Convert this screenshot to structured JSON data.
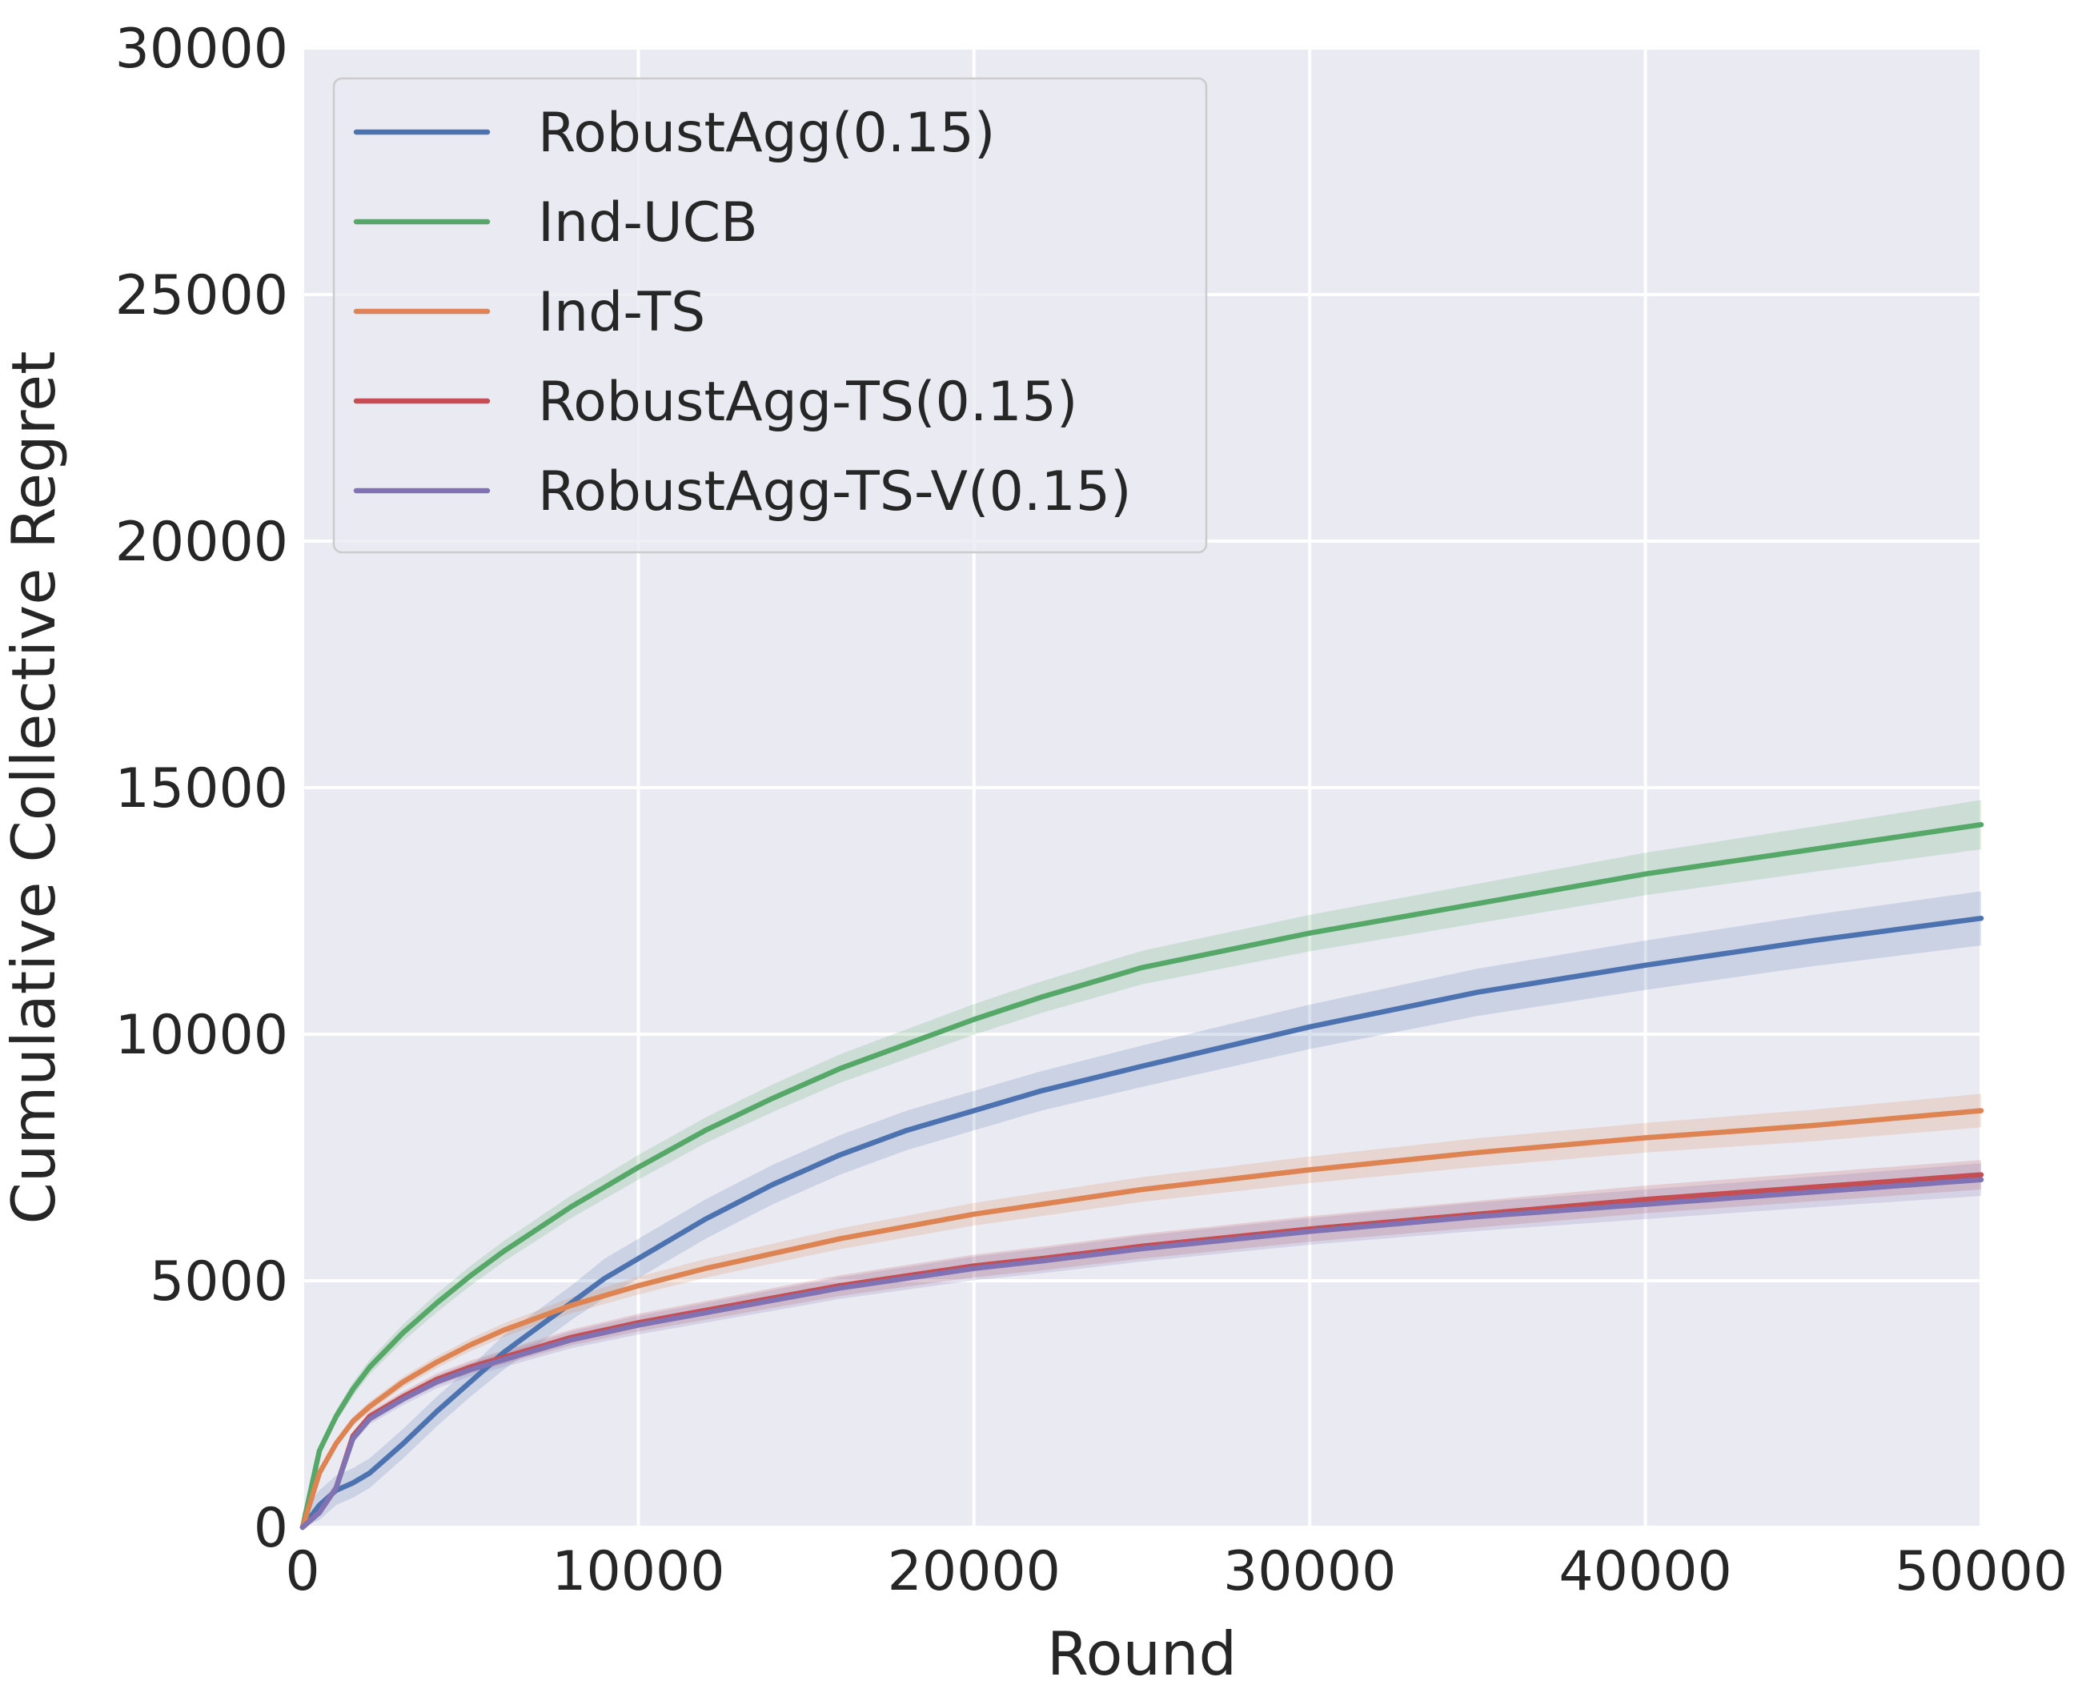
{
  "chart_data": {
    "type": "line",
    "title": "",
    "xlabel": "Round",
    "ylabel": "Cumulative Collective Regret",
    "xlim": [
      0,
      50000
    ],
    "ylim": [
      0,
      30000
    ],
    "xticks": [
      0,
      10000,
      20000,
      30000,
      40000,
      50000
    ],
    "yticks": [
      0,
      5000,
      10000,
      15000,
      20000,
      25000,
      30000
    ],
    "grid": true,
    "legend_position": "top-left",
    "x": [
      0,
      500,
      1000,
      1500,
      2000,
      3000,
      4000,
      5000,
      6000,
      7000,
      8000,
      9000,
      10000,
      12000,
      14000,
      16000,
      18000,
      20000,
      22000,
      25000,
      30000,
      35000,
      40000,
      45000,
      50000
    ],
    "series": [
      {
        "name": "RobustAgg(0.15)",
        "color": "#4c72b0",
        "values": [
          0,
          450,
          750,
          900,
          1100,
          1700,
          2350,
          2950,
          3550,
          4050,
          4550,
          5050,
          5450,
          6250,
          6950,
          7550,
          8050,
          8450,
          8850,
          9350,
          10150,
          10850,
          11400,
          11900,
          12350
        ],
        "band": [
          300,
          300,
          300,
          300,
          300,
          300,
          300,
          300,
          350,
          350,
          350,
          400,
          400,
          400,
          400,
          400,
          400,
          400,
          400,
          420,
          450,
          480,
          500,
          520,
          550
        ]
      },
      {
        "name": "Ind-UCB",
        "color": "#55a868",
        "values": [
          0,
          1550,
          2250,
          2800,
          3250,
          3950,
          4550,
          5100,
          5600,
          6050,
          6500,
          6900,
          7300,
          8050,
          8700,
          9300,
          9800,
          10300,
          10750,
          11350,
          12050,
          12650,
          13250,
          13750,
          14250
        ],
        "band": [
          50,
          100,
          120,
          140,
          150,
          170,
          190,
          200,
          210,
          220,
          230,
          240,
          250,
          260,
          280,
          290,
          300,
          310,
          320,
          340,
          370,
          400,
          430,
          460,
          500
        ]
      },
      {
        "name": "Ind-TS",
        "color": "#dd8452",
        "values": [
          0,
          1100,
          1700,
          2150,
          2450,
          2950,
          3350,
          3700,
          4000,
          4250,
          4500,
          4700,
          4900,
          5250,
          5550,
          5850,
          6100,
          6350,
          6550,
          6850,
          7250,
          7600,
          7900,
          8150,
          8450
        ],
        "band": [
          30,
          60,
          80,
          90,
          100,
          110,
          120,
          130,
          140,
          150,
          160,
          170,
          180,
          190,
          200,
          210,
          220,
          230,
          240,
          250,
          270,
          290,
          300,
          320,
          340
        ]
      },
      {
        "name": "RobustAgg-TS(0.15)",
        "color": "#c44e52",
        "values": [
          0,
          300,
          800,
          1850,
          2250,
          2650,
          3000,
          3250,
          3450,
          3650,
          3850,
          4000,
          4150,
          4400,
          4650,
          4900,
          5100,
          5300,
          5450,
          5700,
          6050,
          6350,
          6650,
          6900,
          7150
        ],
        "band": [
          30,
          60,
          80,
          90,
          100,
          110,
          120,
          130,
          140,
          150,
          160,
          170,
          180,
          190,
          200,
          210,
          220,
          230,
          240,
          250,
          260,
          270,
          280,
          290,
          300
        ]
      },
      {
        "name": "RobustAgg-TS-V(0.15)",
        "color": "#8172b3",
        "values": [
          0,
          300,
          800,
          1800,
          2200,
          2600,
          2950,
          3200,
          3400,
          3600,
          3800,
          3950,
          4100,
          4350,
          4600,
          4850,
          5050,
          5250,
          5400,
          5650,
          6000,
          6300,
          6550,
          6800,
          7050
        ],
        "band": [
          30,
          70,
          90,
          100,
          110,
          120,
          130,
          140,
          150,
          160,
          170,
          180,
          190,
          200,
          210,
          220,
          230,
          240,
          250,
          260,
          270,
          290,
          300,
          310,
          330
        ]
      }
    ]
  }
}
